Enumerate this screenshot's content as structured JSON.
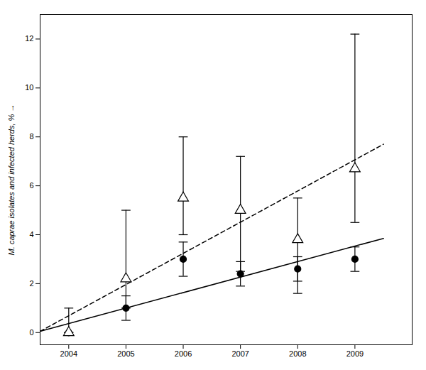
{
  "chart_data": {
    "type": "scatter",
    "ylabel": "M. caprae isolates and infected herds, %",
    "x": [
      2004,
      2005,
      2006,
      2007,
      2008,
      2009
    ],
    "series": [
      {
        "type": "scatter",
        "marker": "circle",
        "color": "black",
        "values": [
          0.0,
          1.0,
          3.0,
          2.4,
          2.6,
          3.0
        ],
        "yerr_low": [
          0.0,
          0.5,
          0.7,
          0.5,
          0.5,
          0.5
        ],
        "yerr_high": [
          0.0,
          0.5,
          0.7,
          0.5,
          0.5,
          0.5
        ]
      },
      {
        "type": "scatter",
        "marker": "open_triangle",
        "color": "black",
        "values": [
          0.0,
          2.2,
          5.5,
          5.0,
          3.8,
          6.7
        ],
        "yerr_low": [
          0.0,
          1.2,
          1.5,
          2.5,
          2.2,
          2.2
        ],
        "yerr_high": [
          1.0,
          2.8,
          2.5,
          2.2,
          1.7,
          5.5
        ]
      },
      {
        "type": "line",
        "line_style": "solid",
        "color": "black",
        "x": [
          2003.5,
          2009.5
        ],
        "values": [
          0.05,
          3.85
        ]
      },
      {
        "type": "line",
        "line_style": "dashed",
        "color": "black",
        "x": [
          2003.5,
          2009.5
        ],
        "values": [
          0.05,
          7.7
        ]
      }
    ],
    "xlim": [
      2003.5,
      2010.0
    ],
    "ylim": [
      -0.5,
      13.0
    ],
    "xticks": [
      2004,
      2005,
      2006,
      2007,
      2008,
      2009
    ],
    "yticks": [
      0,
      2,
      4,
      6,
      8,
      10,
      12
    ],
    "grid": false
  }
}
